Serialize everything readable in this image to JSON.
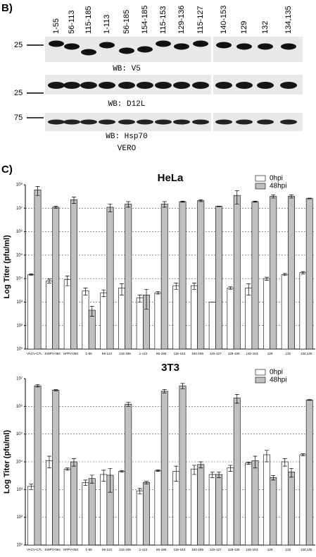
{
  "panel_b": {
    "label": "B)",
    "lanes_left": [
      "1-55",
      "56-113",
      "115-185",
      "1-113",
      "56-185",
      "154-185",
      "115-153",
      "129-136",
      "115-127"
    ],
    "lanes_right": [
      "140-153",
      "129",
      "132",
      "134,135"
    ],
    "markers": [
      25,
      25,
      75
    ],
    "captions": [
      "WB: V5",
      "WB: D12L",
      "WB: Hsp70"
    ],
    "cell_line": "VERO"
  },
  "panel_c": {
    "label": "C)"
  },
  "chart_data": [
    {
      "type": "bar",
      "title": "HeLa",
      "y_label": "Log Titer (pfu/ml)",
      "log_scale": true,
      "grid": true,
      "legend": "upper right",
      "categories": [
        "VACV-C7L",
        "SWPV-064",
        "SPPV-063",
        "1-55",
        "56-113",
        "115-185",
        "1-113",
        "56-185",
        "115-153",
        "154-185",
        "115-127",
        "129-136",
        "140-153",
        "129",
        "132",
        "134,135"
      ],
      "series": [
        {
          "name": "0hpi",
          "color": "#ffffff",
          "values": [
            15000,
            8000,
            9000,
            3000,
            2500,
            4000,
            1500,
            2500,
            5000,
            5000,
            1000,
            4000,
            4000,
            10000,
            15000,
            18000
          ],
          "errors": [
            1000,
            1500,
            4000,
            1000,
            800,
            2000,
            500,
            300,
            1500,
            1500,
            0,
            500,
            2000,
            1500,
            1500,
            2000
          ]
        },
        {
          "name": "48hpi",
          "color": "#c0c0c0",
          "values": [
            60000000,
            11000000,
            23000000,
            450,
            11000000,
            15000000,
            2000,
            15000000,
            19000000,
            21000000,
            12000000,
            35000000,
            19000000,
            32000000,
            32000000,
            26000000
          ],
          "errors": [
            25000000,
            1000000,
            7000000,
            200,
            4000000,
            4000000,
            1500,
            4000000,
            1000000,
            2000000,
            300000,
            20000000,
            1000000,
            5000000,
            5000000,
            1000000
          ]
        }
      ],
      "ylim": [
        10,
        100000000
      ],
      "yticks": [
        {
          "value": 10,
          "label": "10¹"
        },
        {
          "value": 100,
          "label": "10²"
        },
        {
          "value": 1000,
          "label": "10³"
        },
        {
          "value": 10000,
          "label": "10⁴"
        },
        {
          "value": 100000,
          "label": "10⁵"
        },
        {
          "value": 1000000,
          "label": "10⁶"
        },
        {
          "value": 10000000,
          "label": "10⁷"
        },
        {
          "value": 100000000,
          "label": "10⁸"
        }
      ]
    },
    {
      "type": "bar",
      "title": "3T3",
      "y_label": "Log Titer (pfu/ml)",
      "log_scale": true,
      "grid": true,
      "legend": "upper right",
      "categories": [
        "VACV-C7L",
        "SWPV-064",
        "SPPV-063",
        "1-55",
        "56-113",
        "115-185",
        "1-113",
        "56-185",
        "115-153",
        "154-185",
        "115-127",
        "129-136",
        "140-153",
        "129",
        "132",
        "134,135"
      ],
      "series": [
        {
          "name": "0hpi",
          "color": "#ffffff",
          "values": [
            1300,
            11000,
            5500,
            1800,
            3500,
            4500,
            900,
            4800,
            4500,
            5500,
            3500,
            6000,
            9000,
            18000,
            10000,
            18000
          ],
          "errors": [
            300,
            5000,
            500,
            400,
            1500,
            300,
            200,
            300,
            2500,
            2000,
            800,
            1500,
            800,
            8000,
            3000,
            1500
          ]
        },
        {
          "name": "48hpi",
          "color": "#c0c0c0",
          "values": [
            5500000,
            3800000,
            10000,
            2500,
            3300,
            1200000,
            1800,
            3500000,
            5500000,
            8000,
            3500,
            2000000,
            11000,
            2700,
            4300,
            1700000
          ],
          "errors": [
            500000,
            200000,
            3000,
            800,
            2500,
            200000,
            200,
            500000,
            1200000,
            2000,
            800,
            700000,
            5000,
            500,
            1500,
            50000
          ]
        }
      ],
      "ylim": [
        10,
        10000000
      ],
      "yticks": [
        {
          "value": 10,
          "label": "10¹"
        },
        {
          "value": 100,
          "label": "10²"
        },
        {
          "value": 1000,
          "label": "10³"
        },
        {
          "value": 10000,
          "label": "10⁴"
        },
        {
          "value": 100000,
          "label": "10⁵"
        },
        {
          "value": 1000000,
          "label": "10⁶"
        },
        {
          "value": 10000000,
          "label": "10⁷"
        }
      ]
    }
  ]
}
